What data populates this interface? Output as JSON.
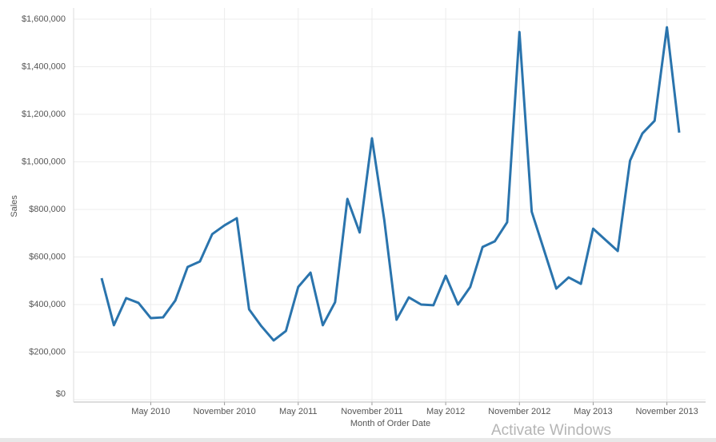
{
  "chart_data": {
    "type": "line",
    "x_label": "Month of Order Date",
    "y_label": "Sales",
    "x": [
      "Jan 2010",
      "Feb 2010",
      "Mar 2010",
      "Apr 2010",
      "May 2010",
      "Jun 2010",
      "Jul 2010",
      "Aug 2010",
      "Sep 2010",
      "Oct 2010",
      "Nov 2010",
      "Dec 2010",
      "Jan 2011",
      "Feb 2011",
      "Mar 2011",
      "Apr 2011",
      "May 2011",
      "Jun 2011",
      "Jul 2011",
      "Aug 2011",
      "Sep 2011",
      "Oct 2011",
      "Nov 2011",
      "Dec 2011",
      "Jan 2012",
      "Feb 2012",
      "Mar 2012",
      "Apr 2012",
      "May 2012",
      "Jun 2012",
      "Jul 2012",
      "Aug 2012",
      "Sep 2012",
      "Oct 2012",
      "Nov 2012",
      "Dec 2012",
      "Jan 2013",
      "Feb 2013",
      "Mar 2013",
      "Apr 2013",
      "May 2013",
      "Jun 2013",
      "Jul 2013",
      "Aug 2013",
      "Sep 2013",
      "Oct 2013",
      "Nov 2013",
      "Dec 2013"
    ],
    "series": [
      {
        "name": "Sales",
        "color": "#2a74ad",
        "values": [
          511000,
          313000,
          427000,
          407000,
          343000,
          346000,
          417000,
          558000,
          581000,
          696000,
          733000,
          763000,
          380000,
          309000,
          249000,
          289000,
          474000,
          534000,
          313000,
          410000,
          844000,
          703000,
          1099000,
          756000,
          336000,
          430000,
          400000,
          397000,
          521000,
          400000,
          474000,
          642000,
          666000,
          746000,
          1546000,
          790000,
          629000,
          467000,
          514000,
          487000,
          719000,
          672000,
          625000,
          1005000,
          1119000,
          1173000,
          1566000,
          1123000
        ]
      }
    ],
    "xticks": [
      "May 2010",
      "November 2010",
      "May 2011",
      "November 2011",
      "May 2012",
      "November 2012",
      "May 2013",
      "November 2013"
    ],
    "ylim": [
      0,
      1600000
    ],
    "yticks": [
      {
        "value": 0,
        "label": "$0"
      },
      {
        "value": 200000,
        "label": "$200,000"
      },
      {
        "value": 400000,
        "label": "$400,000"
      },
      {
        "value": 600000,
        "label": "$600,000"
      },
      {
        "value": 800000,
        "label": "$800,000"
      },
      {
        "value": 1000000,
        "label": "$1,000,000"
      },
      {
        "value": 1200000,
        "label": "$1,200,000"
      },
      {
        "value": 1400000,
        "label": "$1,400,000"
      },
      {
        "value": 1600000,
        "label": "$1,600,000"
      }
    ],
    "grid": true,
    "watermark": "Activate Windows"
  }
}
